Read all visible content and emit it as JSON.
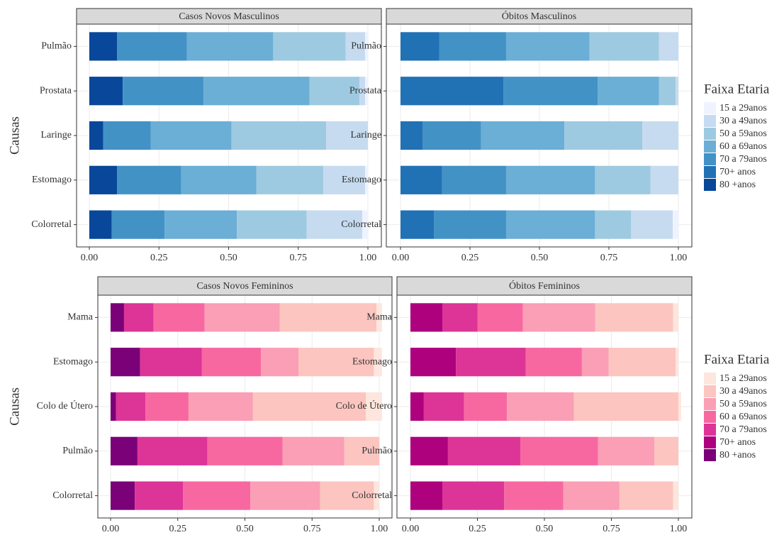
{
  "chart_data": [
    {
      "type": "bar",
      "orientation": "horizontal",
      "title": "Casos Novos Masculinos",
      "ylabel": "Causas",
      "legend_title": "Faixa Etaria",
      "legend": "right",
      "grid": true,
      "categories": [
        "Pulmão",
        "Prostata",
        "Laringe",
        "Estomago",
        "Colorretal"
      ],
      "xlim": [
        0,
        1
      ],
      "xticks": [
        {
          "value": 0,
          "label": "0.00"
        },
        {
          "value": 0.25,
          "label": "0.25"
        },
        {
          "value": 0.5,
          "label": "0.50"
        },
        {
          "value": 0.75,
          "label": "0.75"
        },
        {
          "value": 1,
          "label": "1.00"
        }
      ],
      "series": [
        {
          "name": "15 a 29anos",
          "color": "#eff3ff",
          "values": [
            0.01,
            0.01,
            0,
            0.01,
            0.02
          ]
        },
        {
          "name": "30 a 49anos",
          "color": "#c6dbef",
          "values": [
            0.07,
            0.02,
            0.15,
            0.15,
            0.2
          ]
        },
        {
          "name": "50 a 59anos",
          "color": "#9ecae1",
          "values": [
            0.26,
            0.18,
            0.34,
            0.24,
            0.25
          ]
        },
        {
          "name": "60 a 69anos",
          "color": "#6baed6",
          "values": [
            0.31,
            0.38,
            0.29,
            0.27,
            0.26
          ]
        },
        {
          "name": "70 a 79anos",
          "color": "#4292c6",
          "values": [
            0.25,
            0.29,
            0.17,
            0.23,
            0.19
          ]
        },
        {
          "name": "70+ anos",
          "color": "#2171b5",
          "values": [
            0,
            0,
            0,
            0,
            0
          ]
        },
        {
          "name": "80 +anos",
          "color": "#08479a",
          "values": [
            0.1,
            0.12,
            0.05,
            0.1,
            0.08
          ]
        }
      ]
    },
    {
      "type": "bar",
      "orientation": "horizontal",
      "title": "Óbitos Masculinos",
      "grid": true,
      "categories": [
        "Pulmão",
        "Prostata",
        "Laringe",
        "Estomago",
        "Colorretal"
      ],
      "xlim": [
        0,
        1
      ],
      "xticks": [
        {
          "value": 0,
          "label": "0.00"
        },
        {
          "value": 0.25,
          "label": "0.25"
        },
        {
          "value": 0.5,
          "label": "0.50"
        },
        {
          "value": 0.75,
          "label": "0.75"
        },
        {
          "value": 1,
          "label": "1.00"
        }
      ],
      "series": [
        {
          "color": "#eff3ff",
          "values": [
            0,
            0,
            0,
            0,
            0.02
          ]
        },
        {
          "color": "#c6dbef",
          "values": [
            0.07,
            0.01,
            0.13,
            0.1,
            0.15
          ]
        },
        {
          "color": "#9ecae1",
          "values": [
            0.25,
            0.06,
            0.28,
            0.2,
            0.13
          ]
        },
        {
          "color": "#6baed6",
          "values": [
            0.3,
            0.22,
            0.3,
            0.32,
            0.32
          ]
        },
        {
          "color": "#4292c6",
          "values": [
            0.24,
            0.34,
            0.21,
            0.23,
            0.26
          ]
        },
        {
          "color": "#2171b5",
          "values": [
            0.14,
            0.37,
            0.08,
            0.15,
            0.12
          ]
        },
        {
          "color": "#08479a",
          "values": [
            0,
            0,
            0,
            0,
            0
          ]
        }
      ]
    },
    {
      "type": "bar",
      "orientation": "horizontal",
      "title": "Casos Novos Femininos",
      "ylabel": "Causas",
      "legend_title": "Faixa Etaria",
      "legend": "right",
      "grid": true,
      "categories": [
        "Mama",
        "Estomago",
        "Colo de Útero",
        "Pulmão",
        "Colorretal"
      ],
      "xlim": [
        0,
        1
      ],
      "xticks": [
        {
          "value": 0,
          "label": "0.00"
        },
        {
          "value": 0.25,
          "label": "0.25"
        },
        {
          "value": 0.5,
          "label": "0.50"
        },
        {
          "value": 0.75,
          "label": "0.75"
        },
        {
          "value": 1,
          "label": "1.00"
        }
      ],
      "series": [
        {
          "name": "15 a 29anos",
          "color": "#fde6dd",
          "values": [
            0.02,
            0.03,
            0.06,
            0,
            0.02
          ]
        },
        {
          "name": "30 a 49anos",
          "color": "#fcc5c0",
          "values": [
            0.36,
            0.28,
            0.42,
            0.13,
            0.2
          ]
        },
        {
          "name": "50 a 59anos",
          "color": "#fa9fb5",
          "values": [
            0.28,
            0.14,
            0.24,
            0.23,
            0.26
          ]
        },
        {
          "name": "60 a 69anos",
          "color": "#f768a1",
          "values": [
            0.19,
            0.22,
            0.16,
            0.28,
            0.25
          ]
        },
        {
          "name": "70 a 79anos",
          "color": "#dd3497",
          "values": [
            0.11,
            0.23,
            0.11,
            0.26,
            0.18
          ]
        },
        {
          "name": "70+ anos",
          "color": "#ae017e",
          "values": [
            0,
            0,
            0,
            0,
            0
          ]
        },
        {
          "name": "80 +anos",
          "color": "#7a0177",
          "values": [
            0.05,
            0.11,
            0.02,
            0.1,
            0.09
          ]
        }
      ]
    },
    {
      "type": "bar",
      "orientation": "horizontal",
      "title": "Óbitos Femininos",
      "grid": true,
      "categories": [
        "Mama",
        "Estomago",
        "Colo de Útero",
        "Pulmão",
        "Colorretal"
      ],
      "xlim": [
        0,
        1
      ],
      "xticks": [
        {
          "value": 0,
          "label": "0.00"
        },
        {
          "value": 0.25,
          "label": "0.25"
        },
        {
          "value": 0.5,
          "label": "0.50"
        },
        {
          "value": 0.75,
          "label": "0.75"
        },
        {
          "value": 1,
          "label": "1.00"
        }
      ],
      "series": [
        {
          "color": "#fde6dd",
          "values": [
            0.02,
            0.01,
            0.01,
            0,
            0.02
          ]
        },
        {
          "color": "#fcc5c0",
          "values": [
            0.29,
            0.25,
            0.39,
            0.09,
            0.2
          ]
        },
        {
          "color": "#fa9fb5",
          "values": [
            0.27,
            0.1,
            0.25,
            0.21,
            0.21
          ]
        },
        {
          "color": "#f768a1",
          "values": [
            0.17,
            0.21,
            0.16,
            0.29,
            0.22
          ]
        },
        {
          "color": "#dd3497",
          "values": [
            0.13,
            0.26,
            0.15,
            0.27,
            0.23
          ]
        },
        {
          "color": "#ae017e",
          "values": [
            0.12,
            0.17,
            0.05,
            0.14,
            0.12
          ]
        },
        {
          "color": "#7a0177",
          "values": [
            0,
            0,
            0,
            0,
            0
          ]
        }
      ]
    }
  ]
}
